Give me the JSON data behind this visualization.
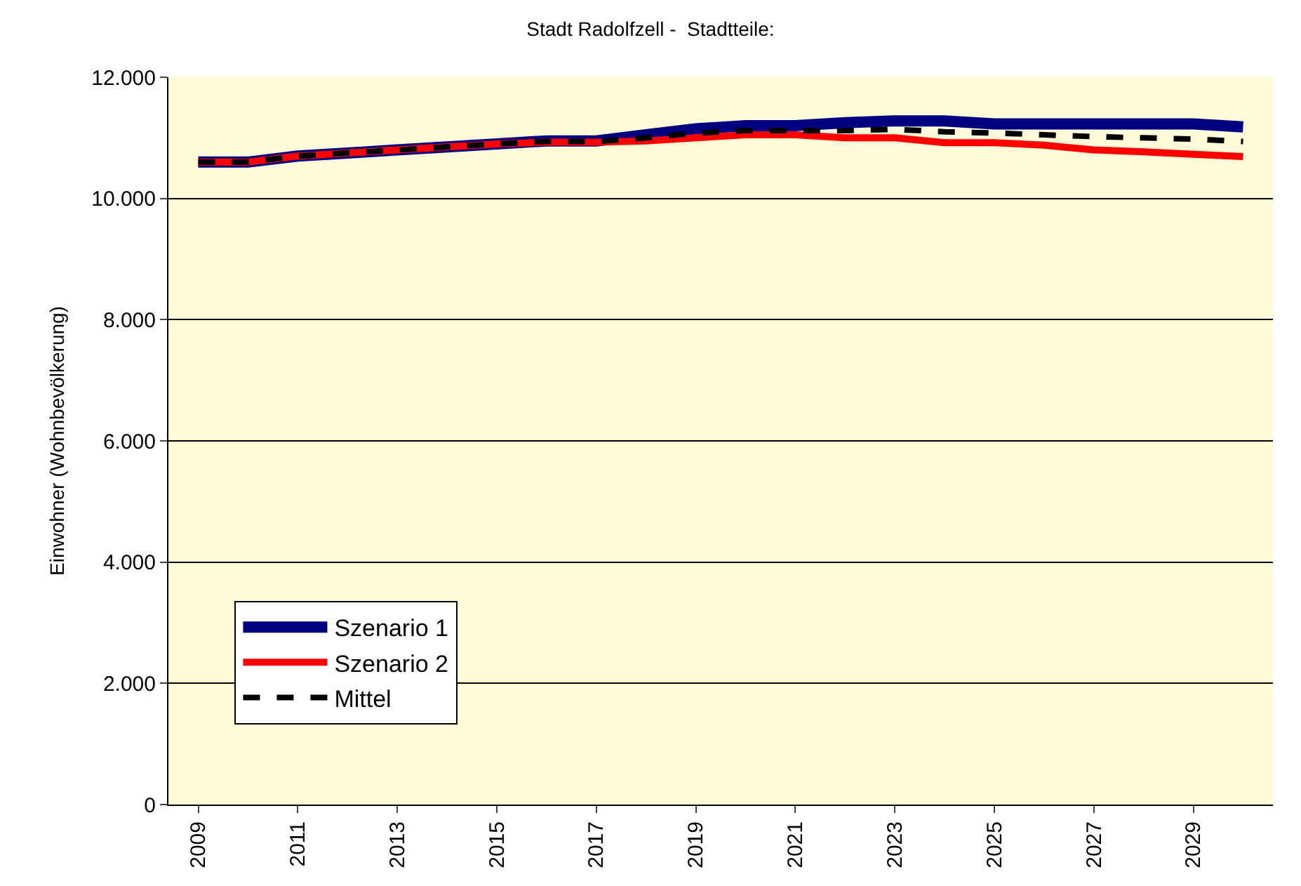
{
  "chart_data": {
    "type": "line",
    "title": "Stadt Radolfzell -  Stadtteile:",
    "ylabel": "Einwohner (Wohnbevölkerung)",
    "categories": [
      "2009",
      null,
      "2011",
      null,
      "2013",
      null,
      "2015",
      null,
      "2017",
      null,
      "2019",
      null,
      "2021",
      null,
      "2023",
      null,
      "2025",
      null,
      "2027",
      null,
      "2029",
      null
    ],
    "series": [
      {
        "name": "Szenario 1",
        "color": "#000080",
        "values": [
          10600,
          10600,
          10700,
          10750,
          10800,
          10850,
          10900,
          10950,
          10950,
          11050,
          11150,
          11200,
          11200,
          11250,
          11280,
          11280,
          11230,
          11230,
          11230,
          11230,
          11230,
          11180
        ]
      },
      {
        "name": "Szenario 2",
        "color": "#ff0000",
        "values": [
          10600,
          10600,
          10700,
          10750,
          10800,
          10850,
          10900,
          10930,
          10930,
          10950,
          11000,
          11050,
          11050,
          11000,
          11000,
          10920,
          10920,
          10880,
          10800,
          10770,
          10730,
          10690
        ]
      },
      {
        "name": "Mittel",
        "color": "#000000",
        "line_style": "dashed",
        "values": [
          10600,
          10600,
          10700,
          10750,
          10800,
          10850,
          10900,
          10940,
          10940,
          11000,
          11080,
          11120,
          11120,
          11120,
          11140,
          11100,
          11080,
          11050,
          11020,
          11000,
          10980,
          10940
        ]
      }
    ],
    "ylim": [
      0,
      12000
    ],
    "yticks": [
      {
        "value": 0,
        "label": "0"
      },
      {
        "value": 2000,
        "label": "2.000"
      },
      {
        "value": 4000,
        "label": "4.000"
      },
      {
        "value": 6000,
        "label": "6.000"
      },
      {
        "value": 8000,
        "label": "8.000"
      },
      {
        "value": 10000,
        "label": "10.000"
      },
      {
        "value": 12000,
        "label": "12.000"
      }
    ],
    "grid": "y",
    "legend": "bottom left",
    "marker": "none",
    "line_style": "solid"
  }
}
